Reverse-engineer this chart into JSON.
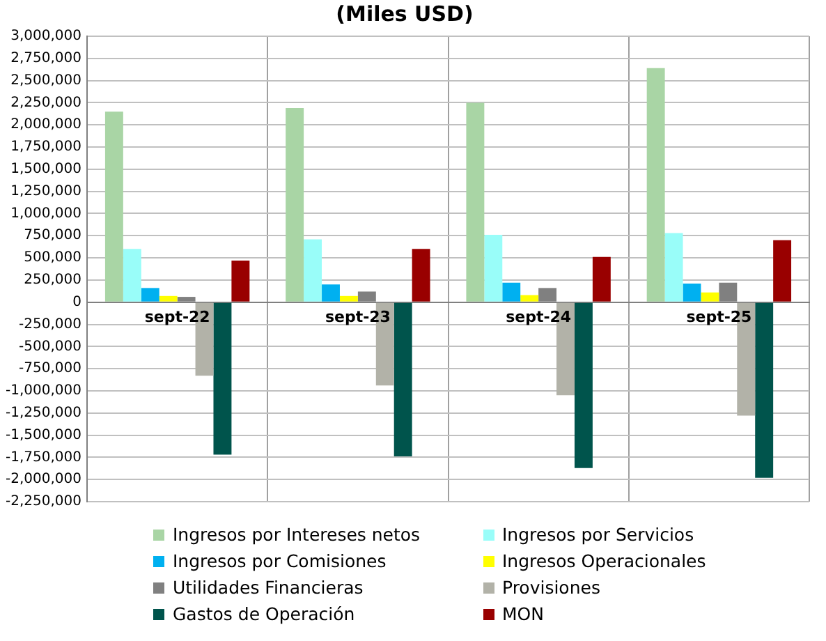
{
  "chart_data": {
    "type": "bar",
    "title": "(Miles USD)",
    "categories": [
      "sept-22",
      "sept-23",
      "sept-24",
      "sept-25"
    ],
    "series": [
      {
        "name": "Ingresos por Intereses netos",
        "color": "#a9d5a5",
        "values": [
          2150000,
          2190000,
          2250000,
          2640000
        ]
      },
      {
        "name": "Ingresos por Servicios",
        "color": "#99fdf9",
        "values": [
          600000,
          710000,
          760000,
          780000
        ]
      },
      {
        "name": "Ingresos por Comisiones",
        "color": "#00b0f0",
        "values": [
          160000,
          200000,
          220000,
          210000
        ]
      },
      {
        "name": "Ingresos Operacionales",
        "color": "#ffff00",
        "values": [
          70000,
          70000,
          80000,
          110000
        ]
      },
      {
        "name": "Utilidades Financieras",
        "color": "#808080",
        "values": [
          60000,
          120000,
          160000,
          220000
        ]
      },
      {
        "name": "Provisiones",
        "color": "#b2b2a8",
        "values": [
          -830000,
          -940000,
          -1050000,
          -1280000
        ]
      },
      {
        "name": "Gastos de Operación",
        "color": "#00544c",
        "values": [
          -1720000,
          -1740000,
          -1870000,
          -1980000
        ]
      },
      {
        "name": "MON",
        "color": "#990000",
        "values": [
          470000,
          600000,
          510000,
          700000
        ]
      }
    ],
    "ylim": [
      -2250000,
      3000000
    ],
    "yticks": [
      {
        "value": -2250000,
        "label": "-2,250,000"
      },
      {
        "value": -2000000,
        "label": "-2,000,000"
      },
      {
        "value": -1750000,
        "label": "-1,750,000"
      },
      {
        "value": -1500000,
        "label": "-1,500,000"
      },
      {
        "value": -1250000,
        "label": "-1,250,000"
      },
      {
        "value": -1000000,
        "label": "-1,000,000"
      },
      {
        "value": -750000,
        "label": "-750,000"
      },
      {
        "value": -500000,
        "label": "-500,000"
      },
      {
        "value": -250000,
        "label": "-250,000"
      },
      0,
      {
        "value": 250000,
        "label": "250,000"
      },
      {
        "value": 500000,
        "label": "500,000"
      },
      {
        "value": 750000,
        "label": "750,000"
      },
      {
        "value": 1000000,
        "label": "1,000,000"
      },
      {
        "value": 1250000,
        "label": "1,250,000"
      },
      {
        "value": 1500000,
        "label": "1,500,000"
      },
      {
        "value": 1750000,
        "label": "1,750,000"
      },
      {
        "value": 2000000,
        "label": "2,000,000"
      },
      {
        "value": 2250000,
        "label": "2,250,000"
      },
      {
        "value": 2500000,
        "label": "2,500,000"
      },
      {
        "value": 2750000,
        "label": "2,750,000"
      },
      {
        "value": 3000000,
        "label": "3,000,000"
      }
    ],
    "grid": true,
    "legend": "bottom"
  }
}
